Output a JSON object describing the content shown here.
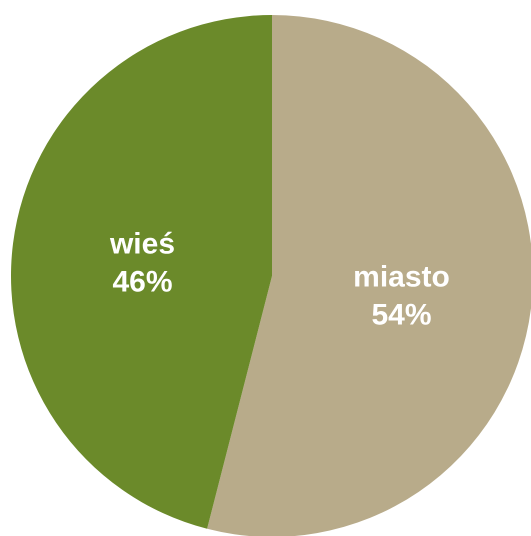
{
  "chart_data": {
    "type": "pie",
    "title": "",
    "slices": [
      {
        "name": "miasto",
        "value": 54,
        "percent_label": "54%",
        "color": "#b8ab8a"
      },
      {
        "name": "wieś",
        "value": 46,
        "percent_label": "46%",
        "color": "#6b8a2a"
      }
    ],
    "start_angle": "12 o'clock",
    "direction": "clockwise",
    "legend": "none",
    "data_labels": "inside slices"
  }
}
